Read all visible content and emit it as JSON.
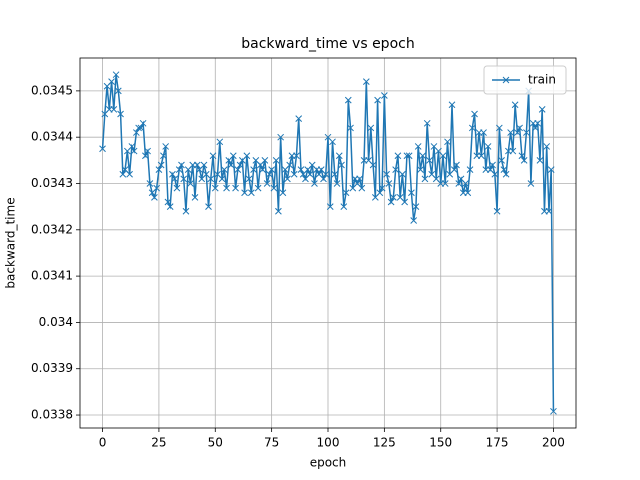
{
  "chart_data": {
    "type": "line",
    "title": "backward_time vs epoch",
    "xlabel": "epoch",
    "ylabel": "backward_time",
    "x": [
      0,
      1,
      2,
      3,
      4,
      5,
      6,
      7,
      8,
      9,
      10,
      11,
      12,
      13,
      14,
      15,
      16,
      17,
      18,
      19,
      20,
      21,
      22,
      23,
      24,
      25,
      26,
      27,
      28,
      29,
      30,
      31,
      32,
      33,
      34,
      35,
      36,
      37,
      38,
      39,
      40,
      41,
      42,
      43,
      44,
      45,
      46,
      47,
      48,
      49,
      50,
      51,
      52,
      53,
      54,
      55,
      56,
      57,
      58,
      59,
      60,
      61,
      62,
      63,
      64,
      65,
      66,
      67,
      68,
      69,
      70,
      71,
      72,
      73,
      74,
      75,
      76,
      77,
      78,
      79,
      80,
      81,
      82,
      83,
      84,
      85,
      86,
      87,
      88,
      89,
      90,
      91,
      92,
      93,
      94,
      95,
      96,
      97,
      98,
      99,
      100,
      101,
      102,
      103,
      104,
      105,
      106,
      107,
      108,
      109,
      110,
      111,
      112,
      113,
      114,
      115,
      116,
      117,
      118,
      119,
      120,
      121,
      122,
      123,
      124,
      125,
      126,
      127,
      128,
      129,
      130,
      131,
      132,
      133,
      134,
      135,
      136,
      137,
      138,
      139,
      140,
      141,
      142,
      143,
      144,
      145,
      146,
      147,
      148,
      149,
      150,
      151,
      152,
      153,
      154,
      155,
      156,
      157,
      158,
      159,
      160,
      161,
      162,
      163,
      164,
      165,
      166,
      167,
      168,
      169,
      170,
      171,
      172,
      173,
      174,
      175,
      176,
      177,
      178,
      179,
      180,
      181,
      182,
      183,
      184,
      185,
      186,
      187,
      188,
      189,
      190,
      191,
      192,
      193,
      194,
      195,
      196,
      197,
      198,
      199,
      200
    ],
    "series": [
      {
        "name": "train",
        "color": "#1f77b4",
        "values": [
          0.034375,
          0.03445,
          0.03451,
          0.03446,
          0.03452,
          0.03446,
          0.034535,
          0.0345,
          0.03445,
          0.03432,
          0.03433,
          0.03437,
          0.03432,
          0.03438,
          0.03437,
          0.03441,
          0.03442,
          0.03442,
          0.03443,
          0.03436,
          0.03437,
          0.0343,
          0.03428,
          0.03427,
          0.03429,
          0.03433,
          0.03434,
          0.03436,
          0.03438,
          0.03426,
          0.03425,
          0.03432,
          0.03431,
          0.03429,
          0.03433,
          0.03434,
          0.03431,
          0.03424,
          0.03433,
          0.0343,
          0.03434,
          0.03427,
          0.03434,
          0.03433,
          0.03431,
          0.03434,
          0.03432,
          0.03425,
          0.03431,
          0.03436,
          0.03429,
          0.03432,
          0.03439,
          0.03431,
          0.03433,
          0.03429,
          0.03435,
          0.03434,
          0.03436,
          0.03429,
          0.03433,
          0.03434,
          0.03435,
          0.03428,
          0.03436,
          0.03431,
          0.03428,
          0.03433,
          0.03435,
          0.03429,
          0.03434,
          0.03433,
          0.03435,
          0.0343,
          0.03432,
          0.03433,
          0.03429,
          0.03435,
          0.03424,
          0.0344,
          0.03428,
          0.03433,
          0.03431,
          0.03434,
          0.03436,
          0.03432,
          0.03436,
          0.03444,
          0.03433,
          0.03432,
          0.03431,
          0.03433,
          0.03432,
          0.03434,
          0.0343,
          0.03433,
          0.03432,
          0.03433,
          0.03431,
          0.03432,
          0.0344,
          0.03425,
          0.03439,
          0.03432,
          0.0343,
          0.03436,
          0.03434,
          0.03425,
          0.03428,
          0.03448,
          0.03442,
          0.03429,
          0.03431,
          0.0343,
          0.03431,
          0.03429,
          0.03435,
          0.03452,
          0.03435,
          0.03442,
          0.03434,
          0.03427,
          0.03448,
          0.03428,
          0.03429,
          0.03449,
          0.03432,
          0.0343,
          0.03426,
          0.03427,
          0.03433,
          0.03436,
          0.03427,
          0.03432,
          0.03426,
          0.03436,
          0.03436,
          0.03428,
          0.03422,
          0.03425,
          0.03438,
          0.03433,
          0.03436,
          0.03431,
          0.03443,
          0.03435,
          0.03432,
          0.03438,
          0.03431,
          0.03437,
          0.0343,
          0.03436,
          0.0343,
          0.03439,
          0.03432,
          0.03447,
          0.03433,
          0.03434,
          0.0343,
          0.03431,
          0.03428,
          0.0343,
          0.03428,
          0.03433,
          0.03442,
          0.03445,
          0.03436,
          0.03441,
          0.03436,
          0.03441,
          0.03433,
          0.03438,
          0.03433,
          0.03434,
          0.03432,
          0.03424,
          0.03442,
          0.03435,
          0.03433,
          0.03432,
          0.03437,
          0.03441,
          0.03437,
          0.03447,
          0.03441,
          0.03442,
          0.03436,
          0.03435,
          0.03441,
          0.0345,
          0.0343,
          0.03443,
          0.03442,
          0.03443,
          0.03435,
          0.03446,
          0.03424,
          0.03438,
          0.03424,
          0.03433,
          0.033808
        ]
      }
    ],
    "xlim": [
      -10,
      210
    ],
    "xticks": [
      0,
      25,
      50,
      75,
      100,
      125,
      150,
      175,
      200
    ],
    "ylim": [
      0.033772,
      0.034571
    ],
    "yticks": [
      0.0338,
      0.0339,
      0.034,
      0.0341,
      0.0342,
      0.0343,
      0.0344,
      0.0345
    ],
    "grid": true,
    "legend": "upper right"
  }
}
